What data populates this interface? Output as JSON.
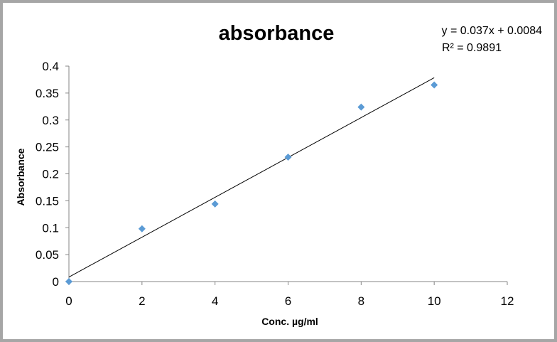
{
  "chart_data": {
    "type": "scatter",
    "title": "absorbance",
    "xlabel": "Conc. µg/ml",
    "ylabel": "Absorbance",
    "xlim": [
      0,
      12
    ],
    "ylim": [
      0,
      0.4
    ],
    "x_ticks": [
      "0",
      "2",
      "4",
      "6",
      "8",
      "10",
      "12"
    ],
    "y_ticks": [
      "0",
      "0.05",
      "0.1",
      "0.15",
      "0.2",
      "0.25",
      "0.3",
      "0.35",
      "0.4"
    ],
    "series": [
      {
        "x": [
          0,
          2,
          4,
          6,
          8,
          10
        ],
        "y": [
          0,
          0.098,
          0.144,
          0.231,
          0.324,
          0.365
        ],
        "marker": "diamond",
        "color": "#5b9bd5"
      }
    ],
    "trendline": {
      "type": "linear",
      "slope": 0.037,
      "intercept": 0.0084,
      "x_range": [
        0,
        10
      ],
      "color": "#000000"
    },
    "equation_label": "y = 0.037x + 0.0084",
    "r2_label": "R² = 0.9891",
    "grid": false,
    "legend": "none"
  }
}
